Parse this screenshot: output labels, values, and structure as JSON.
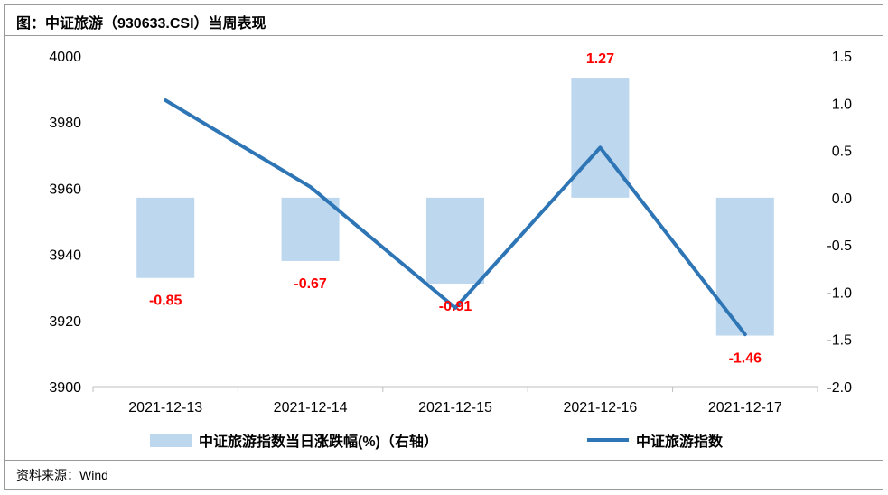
{
  "title": "图：中证旅游（930633.CSI）当周表现",
  "source": "资料来源：Wind",
  "colors": {
    "bar": "#bdd7ee",
    "line": "#2e75b6",
    "label": "#ff0000"
  },
  "legend": {
    "bar_label": "中证旅游指数当日涨跌幅(%)（右轴）",
    "line_label": "中证旅游指数"
  },
  "chart_data": {
    "type": "bar+line",
    "categories": [
      "2021-12-13",
      "2021-12-14",
      "2021-12-15",
      "2021-12-16",
      "2021-12-17"
    ],
    "left_axis": {
      "ylim": [
        3900,
        4000
      ],
      "ticks": [
        "4000",
        "3980",
        "3960",
        "3940",
        "3920",
        "3900"
      ]
    },
    "right_axis": {
      "ylim": [
        -2.0,
        1.5
      ],
      "ticks": [
        "1.5",
        "1.0",
        "0.5",
        "0.0",
        "-0.5",
        "-1.0",
        "-1.5",
        "-2.0"
      ]
    },
    "series": [
      {
        "name": "中证旅游指数当日涨跌幅(%)（右轴）",
        "type": "bar",
        "axis": "right",
        "values": [
          -0.85,
          -0.67,
          -0.91,
          1.27,
          -1.46
        ],
        "labels": [
          "-0.85",
          "-0.67",
          "-0.91",
          "1.27",
          "-1.46"
        ]
      },
      {
        "name": "中证旅游指数",
        "type": "line",
        "axis": "left",
        "values": [
          3986.6,
          3960.4,
          3923.8,
          3972.3,
          3915.8
        ]
      }
    ],
    "grid": false,
    "legend_position": "bottom"
  }
}
